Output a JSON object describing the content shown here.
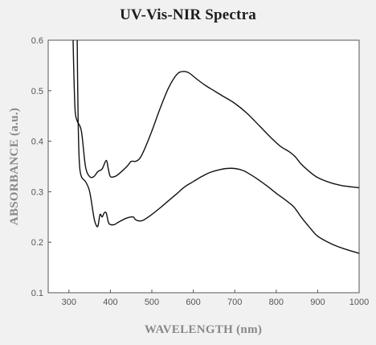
{
  "chart_data": {
    "type": "line",
    "title": "UV-Vis-NIR Spectra",
    "xlabel": "WAVELENGTH (nm)",
    "ylabel": "ABSORBANCE (a.u.)",
    "xlim": [
      250,
      1000
    ],
    "ylim": [
      0.1,
      0.6
    ],
    "x_ticks": [
      "300",
      "400",
      "500",
      "600",
      "700",
      "800",
      "900",
      "1000"
    ],
    "y_ticks": [
      "0.1",
      "0.2",
      "0.3",
      "0.4",
      "0.5",
      "0.6"
    ],
    "grid": false,
    "colors": {
      "line": "#111111",
      "plot_bg": "#ffffff",
      "page_bg": "#f1f1f1",
      "axis": "#555555"
    },
    "series": [
      {
        "x": [
          310,
          312,
          315,
          320,
          330,
          340,
          350,
          360,
          370,
          380,
          390,
          395,
          400,
          410,
          420,
          440,
          450,
          460,
          470,
          480,
          500,
          520,
          540,
          560,
          575,
          590,
          610,
          630,
          650,
          670,
          700,
          730,
          760,
          790,
          810,
          830,
          845,
          860,
          880,
          900,
          930,
          960,
          1000
        ],
        "y": [
          0.6,
          0.53,
          0.46,
          0.44,
          0.42,
          0.35,
          0.33,
          0.33,
          0.34,
          0.345,
          0.362,
          0.345,
          0.33,
          0.33,
          0.335,
          0.35,
          0.36,
          0.36,
          0.365,
          0.38,
          0.42,
          0.465,
          0.505,
          0.532,
          0.538,
          0.535,
          0.522,
          0.51,
          0.5,
          0.49,
          0.475,
          0.455,
          0.43,
          0.405,
          0.39,
          0.38,
          0.37,
          0.355,
          0.34,
          0.328,
          0.318,
          0.312,
          0.308
        ]
      },
      {
        "x": [
          320,
          322,
          325,
          330,
          340,
          350,
          360,
          365,
          370,
          375,
          380,
          385,
          390,
          395,
          400,
          410,
          420,
          440,
          455,
          460,
          470,
          480,
          500,
          520,
          540,
          560,
          580,
          600,
          620,
          640,
          660,
          680,
          700,
          720,
          740,
          760,
          780,
          800,
          820,
          840,
          850,
          860,
          880,
          900,
          930,
          960,
          1000
        ],
        "y": [
          0.6,
          0.45,
          0.36,
          0.33,
          0.32,
          0.3,
          0.25,
          0.235,
          0.232,
          0.255,
          0.25,
          0.258,
          0.258,
          0.24,
          0.235,
          0.235,
          0.24,
          0.248,
          0.25,
          0.245,
          0.242,
          0.244,
          0.255,
          0.268,
          0.282,
          0.296,
          0.31,
          0.32,
          0.33,
          0.338,
          0.343,
          0.346,
          0.346,
          0.342,
          0.333,
          0.322,
          0.31,
          0.297,
          0.285,
          0.272,
          0.262,
          0.25,
          0.23,
          0.212,
          0.198,
          0.188,
          0.178
        ]
      }
    ]
  }
}
